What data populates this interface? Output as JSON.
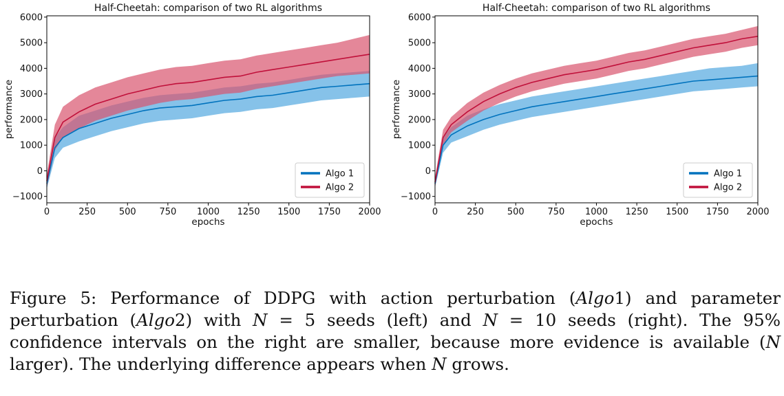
{
  "figure": {
    "caption_label": "Figure 5:",
    "caption_parts": {
      "p1": "Performance of DDPG with action perturbation (",
      "algo1": "Algo",
      "n1": "1",
      "p2": ") and parameter perturbation (",
      "algo2": "Algo",
      "n2": "2",
      "p3": ") with ",
      "N1": "N",
      "p4": " = 5 seeds (left) and ",
      "N2": "N",
      "p5": " = 10 seeds (right). The 95% confidence intervals on the right are smaller, because more evidence is available (",
      "N3": "N",
      "p6": " larger). The underlying difference appears when ",
      "N4": "N",
      "p7": " grows."
    }
  },
  "colors": {
    "algo1": "#0072bd",
    "algo1_band": "#5dade2",
    "algo2": "#c0103a",
    "algo2_band": "#d9546e"
  },
  "chart_data": [
    {
      "type": "line",
      "title": "Half-Cheetah: comparison of two RL algorithms",
      "xlabel": "epochs",
      "ylabel": "performance",
      "xlim": [
        0,
        2000
      ],
      "ylim": [
        -1250,
        6050
      ],
      "x_ticks": [
        0,
        250,
        500,
        750,
        1000,
        1250,
        1500,
        1750,
        2000
      ],
      "y_ticks": [
        -1000,
        0,
        1000,
        2000,
        3000,
        4000,
        5000,
        6000
      ],
      "grid": false,
      "legend": "bottom-right",
      "x": [
        0,
        50,
        100,
        200,
        300,
        400,
        500,
        600,
        700,
        800,
        900,
        1000,
        1100,
        1200,
        1300,
        1400,
        1500,
        1600,
        1700,
        1800,
        1900,
        2000
      ],
      "series": [
        {
          "name": "Algo 1",
          "values": [
            -500,
            900,
            1300,
            1650,
            1850,
            2050,
            2200,
            2350,
            2450,
            2500,
            2550,
            2650,
            2750,
            2800,
            2900,
            2950,
            3050,
            3150,
            3250,
            3300,
            3350,
            3400
          ],
          "lower": [
            -700,
            500,
            900,
            1150,
            1350,
            1550,
            1700,
            1850,
            1950,
            2000,
            2050,
            2150,
            2250,
            2300,
            2400,
            2450,
            2550,
            2650,
            2750,
            2800,
            2850,
            2900
          ],
          "upper": [
            -300,
            1300,
            1700,
            2150,
            2350,
            2550,
            2700,
            2850,
            2950,
            3000,
            3050,
            3150,
            3250,
            3300,
            3400,
            3450,
            3550,
            3650,
            3750,
            3800,
            3850,
            3900
          ]
        },
        {
          "name": "Algo 2",
          "values": [
            -400,
            1300,
            1900,
            2300,
            2600,
            2800,
            3000,
            3150,
            3300,
            3400,
            3450,
            3550,
            3650,
            3700,
            3850,
            3950,
            4050,
            4150,
            4250,
            4350,
            4450,
            4550
          ],
          "lower": [
            -650,
            800,
            1300,
            1650,
            1950,
            2150,
            2350,
            2500,
            2650,
            2750,
            2800,
            2900,
            3000,
            3050,
            3200,
            3300,
            3400,
            3500,
            3600,
            3700,
            3750,
            3800
          ],
          "upper": [
            -150,
            1800,
            2500,
            2950,
            3250,
            3450,
            3650,
            3800,
            3950,
            4050,
            4100,
            4200,
            4300,
            4350,
            4500,
            4600,
            4700,
            4800,
            4900,
            5000,
            5150,
            5300
          ]
        }
      ]
    },
    {
      "type": "line",
      "title": "Half-Cheetah: comparison of two RL algorithms",
      "xlabel": "epochs",
      "ylabel": "performance",
      "xlim": [
        0,
        2000
      ],
      "ylim": [
        -1250,
        6050
      ],
      "x_ticks": [
        0,
        250,
        500,
        750,
        1000,
        1250,
        1500,
        1750,
        2000
      ],
      "y_ticks": [
        -1000,
        0,
        1000,
        2000,
        3000,
        4000,
        5000,
        6000
      ],
      "grid": false,
      "legend": "bottom-right",
      "x": [
        0,
        50,
        100,
        200,
        300,
        400,
        500,
        600,
        700,
        800,
        900,
        1000,
        1100,
        1200,
        1300,
        1400,
        1500,
        1600,
        1700,
        1800,
        1900,
        2000
      ],
      "series": [
        {
          "name": "Algo 1",
          "values": [
            -500,
            1000,
            1400,
            1750,
            2000,
            2200,
            2350,
            2500,
            2600,
            2700,
            2800,
            2900,
            3000,
            3100,
            3200,
            3300,
            3400,
            3500,
            3550,
            3600,
            3650,
            3700
          ],
          "lower": [
            -650,
            700,
            1100,
            1350,
            1600,
            1800,
            1950,
            2100,
            2200,
            2300,
            2400,
            2500,
            2600,
            2700,
            2800,
            2900,
            3000,
            3100,
            3150,
            3200,
            3250,
            3300
          ],
          "upper": [
            -350,
            1300,
            1700,
            2150,
            2400,
            2600,
            2750,
            2900,
            3000,
            3100,
            3200,
            3300,
            3400,
            3500,
            3600,
            3700,
            3800,
            3900,
            4000,
            4050,
            4100,
            4200
          ]
        },
        {
          "name": "Algo 2",
          "values": [
            -450,
            1300,
            1800,
            2300,
            2700,
            3000,
            3250,
            3450,
            3600,
            3750,
            3850,
            3950,
            4100,
            4250,
            4350,
            4500,
            4650,
            4800,
            4900,
            5000,
            5150,
            5250
          ],
          "lower": [
            -650,
            1000,
            1500,
            1950,
            2350,
            2650,
            2900,
            3100,
            3250,
            3400,
            3500,
            3600,
            3750,
            3900,
            4000,
            4150,
            4300,
            4450,
            4550,
            4650,
            4800,
            4900
          ],
          "upper": [
            -250,
            1600,
            2100,
            2650,
            3050,
            3350,
            3600,
            3800,
            3950,
            4100,
            4200,
            4300,
            4450,
            4600,
            4700,
            4850,
            5000,
            5150,
            5250,
            5350,
            5500,
            5650
          ]
        }
      ]
    }
  ]
}
